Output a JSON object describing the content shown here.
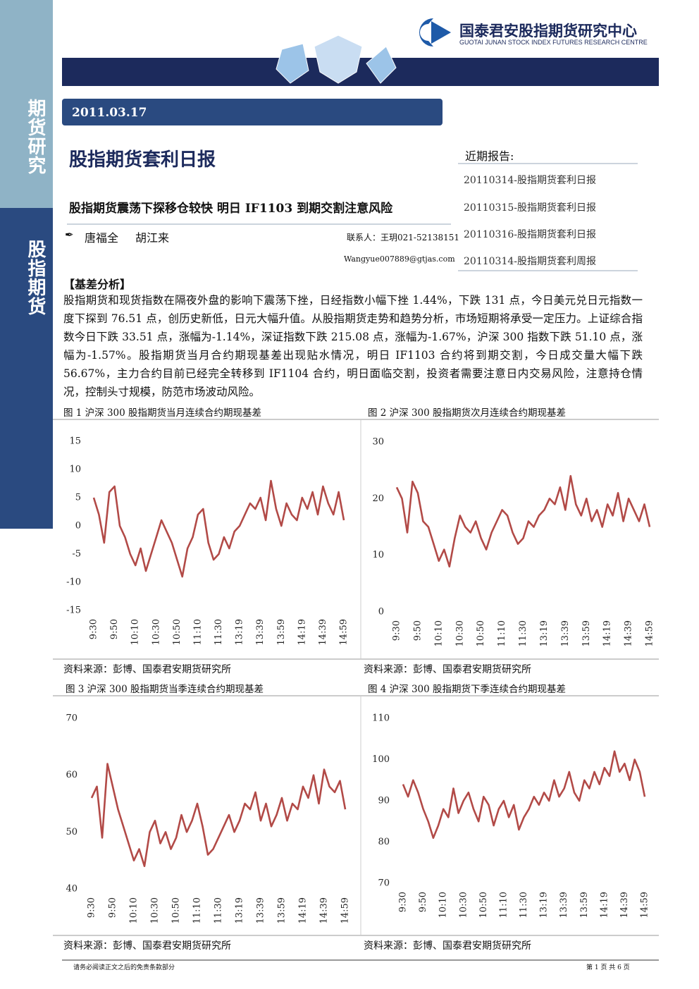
{
  "header": {
    "org_name": "国泰君安股指期货研究中心",
    "org_name_en": "GUOTAI JUNAN STOCK INDEX FUTURES RESEARCH CENTRE"
  },
  "sidebar": {
    "top": "期货研究",
    "bottom": "股指期货"
  },
  "date": "2011.03.17",
  "title": "股指期货套利日报",
  "subtitle": "股指期货震荡下探移仓较快 明日 IF1103 到期交割注意风险",
  "authors": [
    "唐福全",
    "胡江来"
  ],
  "contact": {
    "phone": "联系人：王玥021-52138151",
    "email": "Wangyue007889@gtjas.com"
  },
  "recent_reports": {
    "heading": "近期报告:",
    "items": [
      "20110314-股指期货套利日报",
      "20110315-股指期货套利日报",
      "20110316-股指期货套利日报",
      "20110314-股指期货套利周报"
    ]
  },
  "section": {
    "heading": "【基差分析】",
    "body": "股指期货和现货指数在隔夜外盘的影响下震荡下挫，日经指数小幅下挫 1.44%，下跌 131 点，今日美元兑日元指数一度下探到 76.51 点，创历史新低，日元大幅升值。从股指期货走势和趋势分析，市场短期将承受一定压力。上证综合指数今日下跌 33.51 点，涨幅为-1.14%，深证指数下跌 215.08 点，涨幅为-1.67%，沪深 300 指数下跌 51.10 点，涨幅为-1.57%。股指期货当月合约期现基差出现贴水情况，明日 IF1103 合约将到期交割，今日成交量大幅下跌 56.67%，主力合约目前已经完全转移到 IF1104 合约，明日面临交割，投资者需要注意日内交易风险，注意持仓情况，控制头寸规模，防范市场波动风险。"
  },
  "chart_data": [
    {
      "type": "line",
      "title": "图 1 沪深 300 股指期货当月连续合约期现基差",
      "source": "资料来源：彭博、国泰君安期货研究所",
      "color": "#b24a47",
      "categories": [
        "9:30",
        null,
        null,
        null,
        "9:50",
        null,
        null,
        null,
        "10:10",
        null,
        null,
        null,
        "10:30",
        null,
        null,
        null,
        "10:50",
        null,
        null,
        null,
        "11:10",
        null,
        null,
        null,
        "11:30",
        null,
        null,
        null,
        "13:19",
        null,
        null,
        null,
        "13:39",
        null,
        null,
        null,
        "13:59",
        null,
        null,
        null,
        "14:19",
        null,
        null,
        null,
        "14:39",
        null,
        null,
        null,
        "14:59"
      ],
      "values": [
        5,
        2,
        -3,
        6,
        7,
        0,
        -2,
        -5,
        -7,
        -4,
        -8,
        -5,
        -2,
        1,
        -1,
        -3,
        -6,
        -9,
        -4,
        -2,
        2,
        3,
        -3,
        -6,
        -5,
        -2,
        -4,
        -1,
        0,
        2,
        4,
        3,
        5,
        1,
        8,
        3,
        0,
        4,
        2,
        1,
        5,
        3,
        6,
        2,
        7,
        4,
        2,
        6,
        1
      ],
      "ylim": [
        -15,
        15
      ],
      "yticks": [
        -15,
        -10,
        -5,
        0,
        5,
        10,
        15
      ]
    },
    {
      "type": "line",
      "title": "图 2 沪深 300 股指期货次月连续合约期现基差",
      "source": "资料来源：彭博、国泰君安期货研究所",
      "color": "#b24a47",
      "categories": [
        "9:30",
        null,
        null,
        null,
        "9:50",
        null,
        null,
        null,
        "10:10",
        null,
        null,
        null,
        "10:30",
        null,
        null,
        null,
        "10:50",
        null,
        null,
        null,
        "11:10",
        null,
        null,
        null,
        "11:30",
        null,
        null,
        null,
        "13:19",
        null,
        null,
        null,
        "13:39",
        null,
        null,
        null,
        "13:59",
        null,
        null,
        null,
        "14:19",
        null,
        null,
        null,
        "14:39",
        null,
        null,
        null,
        "14:59"
      ],
      "values": [
        22,
        20,
        14,
        23,
        21,
        16,
        15,
        12,
        9,
        11,
        8,
        13,
        17,
        15,
        14,
        16,
        13,
        11,
        14,
        16,
        18,
        17,
        14,
        12,
        13,
        16,
        15,
        17,
        18,
        20,
        19,
        22,
        18,
        24,
        19,
        17,
        20,
        16,
        18,
        15,
        19,
        17,
        21,
        16,
        20,
        18,
        16,
        19,
        15
      ],
      "ylim": [
        0,
        30
      ],
      "yticks": [
        0,
        10,
        20,
        30
      ]
    },
    {
      "type": "line",
      "title": "图 3 沪深 300 股指期货当季连续合约期现基差",
      "source": "资料来源：彭博、国泰君安期货研究所",
      "color": "#b24a47",
      "categories": [
        "9:30",
        null,
        null,
        null,
        "9:50",
        null,
        null,
        null,
        "10:10",
        null,
        null,
        null,
        "10:30",
        null,
        null,
        null,
        "10:50",
        null,
        null,
        null,
        "11:10",
        null,
        null,
        null,
        "11:30",
        null,
        null,
        null,
        "13:19",
        null,
        null,
        null,
        "13:39",
        null,
        null,
        null,
        "13:59",
        null,
        null,
        null,
        "14:19",
        null,
        null,
        null,
        "14:39",
        null,
        null,
        null,
        "14:59"
      ],
      "values": [
        56,
        58,
        49,
        62,
        58,
        54,
        51,
        48,
        45,
        47,
        44,
        50,
        52,
        48,
        50,
        47,
        49,
        53,
        50,
        52,
        55,
        51,
        46,
        47,
        49,
        51,
        53,
        50,
        52,
        55,
        54,
        57,
        52,
        55,
        51,
        53,
        56,
        52,
        55,
        54,
        58,
        56,
        60,
        55,
        61,
        58,
        57,
        59,
        54
      ],
      "ylim": [
        40,
        70
      ],
      "yticks": [
        40,
        50,
        60,
        70
      ]
    },
    {
      "type": "line",
      "title": "图 4 沪深 300 股指期货下季连续合约期现基差",
      "source": "资料来源：彭博、国泰君安期货研究所",
      "color": "#b24a47",
      "categories": [
        "9:30",
        null,
        null,
        null,
        "9:50",
        null,
        null,
        null,
        "10:10",
        null,
        null,
        null,
        "10:30",
        null,
        null,
        null,
        "10:50",
        null,
        null,
        null,
        "11:10",
        null,
        null,
        null,
        "11:30",
        null,
        null,
        null,
        "13:19",
        null,
        null,
        null,
        "13:39",
        null,
        null,
        null,
        "13:59",
        null,
        null,
        null,
        "14:19",
        null,
        null,
        null,
        "14:39",
        null,
        null,
        null,
        "14:59"
      ],
      "values": [
        94,
        91,
        95,
        92,
        88,
        85,
        81,
        84,
        88,
        86,
        93,
        87,
        90,
        92,
        88,
        85,
        91,
        89,
        84,
        88,
        90,
        86,
        89,
        83,
        86,
        88,
        91,
        89,
        92,
        90,
        95,
        91,
        93,
        97,
        92,
        90,
        95,
        93,
        97,
        94,
        98,
        96,
        102,
        97,
        99,
        95,
        100,
        97,
        91
      ],
      "ylim": [
        70,
        110
      ],
      "yticks": [
        70,
        80,
        90,
        100,
        110
      ]
    }
  ],
  "footer": {
    "disclaimer": "请务必阅读正文之后的免责条款部分",
    "page": "第 1 页 共 6 页"
  }
}
